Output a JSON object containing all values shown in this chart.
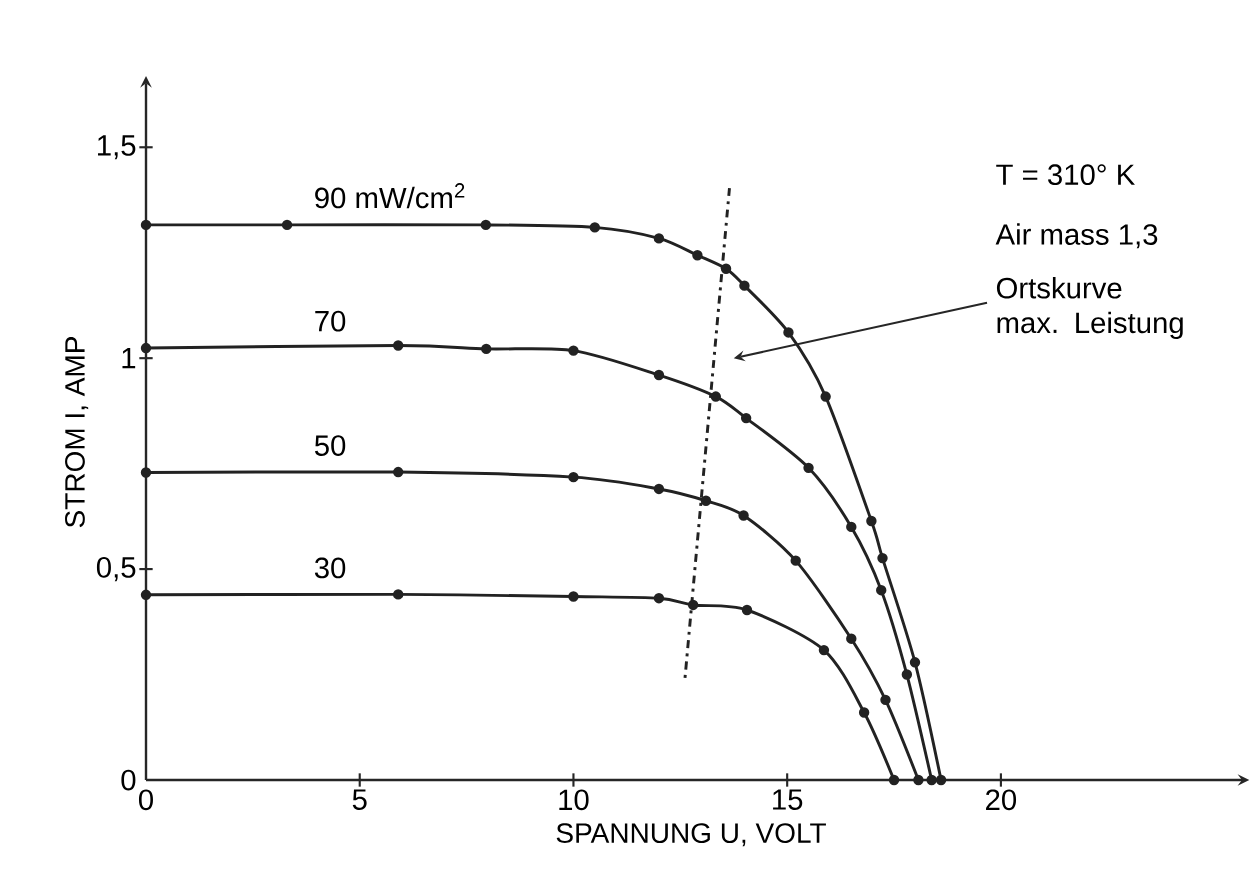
{
  "chart_data": {
    "type": "line",
    "xlabel": "SPANNUNG  U, VOLT",
    "ylabel": "STROM  I, AMP",
    "xlim": [
      0,
      25.5
    ],
    "ylim": [
      0,
      1.65
    ],
    "xticks": [
      0,
      5,
      10,
      15,
      20
    ],
    "yticks": [
      0,
      {
        "value": 0.5,
        "label": "0,5"
      },
      1,
      {
        "value": 1.5,
        "label": "1,5"
      }
    ],
    "grid": false,
    "marker": "circle",
    "line_style": "solid",
    "series": [
      {
        "name": "90 mW/cm$^{2}$",
        "color": "#222222",
        "x": [
          0,
          3.3,
          7.95,
          10.5,
          12.0,
          12.9,
          13.57,
          14.0,
          15.03,
          15.9,
          16.97,
          17.23,
          17.99,
          18.6
        ],
        "values": [
          1.316,
          1.316,
          1.316,
          1.31,
          1.284,
          1.244,
          1.212,
          1.172,
          1.061,
          0.909,
          0.614,
          0.526,
          0.279,
          0
        ]
      },
      {
        "name": "70",
        "color": "#222222",
        "x": [
          0,
          5.9,
          7.96,
          10.0,
          12.0,
          13.33,
          14.04,
          15.5,
          16.5,
          17.2,
          17.8,
          18.38
        ],
        "values": [
          1.024,
          1.03,
          1.022,
          1.018,
          0.96,
          0.909,
          0.858,
          0.74,
          0.6,
          0.45,
          0.25,
          0
        ]
      },
      {
        "name": "50",
        "color": "#222222",
        "x": [
          0,
          5.9,
          10.0,
          12.0,
          13.1,
          13.98,
          15.2,
          16.5,
          17.3,
          18.07
        ],
        "values": [
          0.729,
          0.73,
          0.718,
          0.69,
          0.662,
          0.627,
          0.52,
          0.335,
          0.19,
          0
        ]
      },
      {
        "name": "30",
        "color": "#222222",
        "x": [
          0,
          5.9,
          10.0,
          12.0,
          12.8,
          14.06,
          15.86,
          16.8,
          17.5
        ],
        "values": [
          0.439,
          0.44,
          0.435,
          0.431,
          0.415,
          0.403,
          0.308,
          0.16,
          0
        ]
      },
      {
        "color": "#222222",
        "marker": "none",
        "line_style": "dashed",
        "x": [
          13.65,
          12.6
        ],
        "values": [
          1.403,
          0.231
        ]
      }
    ],
    "annotations": [
      "T = 310° K",
      "Air mass  1,3",
      "Ortskurve max. Leistung"
    ]
  }
}
